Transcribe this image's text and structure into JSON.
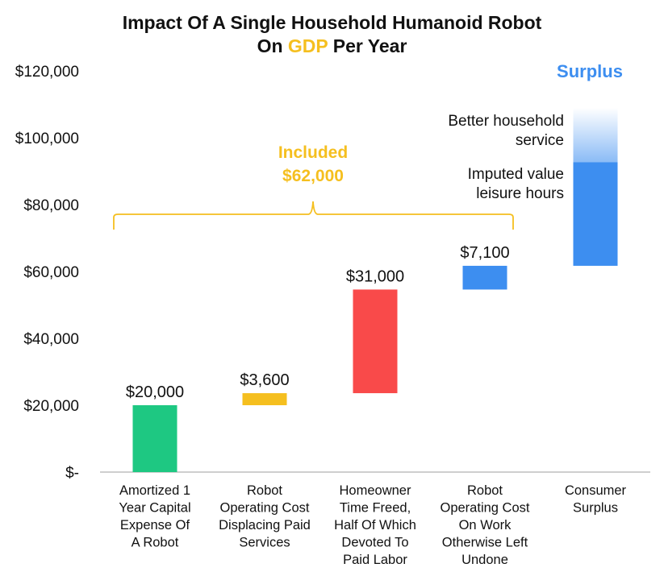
{
  "chart_data": {
    "type": "bar",
    "subtype": "waterfall",
    "title": {
      "prefix": "Impact Of A Single Household Humanoid Robot",
      "line2_prefix": "On ",
      "highlight": "GDP",
      "line2_suffix": " Per Year"
    },
    "y_ticks": [
      "$-",
      "$20,000",
      "$40,000",
      "$60,000",
      "$80,000",
      "$100,000",
      "$120,000"
    ],
    "y_tick_values": [
      0,
      20000,
      40000,
      60000,
      80000,
      100000,
      120000
    ],
    "ylim": [
      0,
      120000
    ],
    "grid": false,
    "bars": [
      {
        "category_lines": [
          "Amortized 1",
          "Year Capital",
          "Expense Of",
          "A Robot"
        ],
        "start": 0,
        "end": 20000,
        "label": "$20,000",
        "color": "#1ec882"
      },
      {
        "category_lines": [
          "Robot",
          "Operating Cost",
          "Displacing Paid",
          "Services"
        ],
        "start": 20000,
        "end": 23600,
        "label": "$3,600",
        "color": "#f5bf1f"
      },
      {
        "category_lines": [
          "Homeowner",
          "Time Freed,",
          "Half Of Which",
          "Devoted To",
          "Paid Labor"
        ],
        "start": 23600,
        "end": 54600,
        "label": "$31,000",
        "color": "#f94a4a"
      },
      {
        "category_lines": [
          "Robot",
          "Operating Cost",
          "On Work",
          "Otherwise Left",
          "Undone"
        ],
        "start": 54600,
        "end": 61700,
        "label": "$7,100",
        "color": "#3d8ef0"
      },
      {
        "category_lines": [
          "Consumer",
          "Surplus"
        ],
        "start": 61700,
        "end": 92700,
        "label": "",
        "color": "#3d8ef0",
        "gradient_top": 109000
      }
    ],
    "included": {
      "label": "Included",
      "value": "$62,000",
      "color": "#f5bf1f"
    },
    "surplus": {
      "label": "Surplus",
      "annotations": [
        [
          "Better household",
          "service"
        ],
        [
          "Imputed value",
          "leisure hours"
        ]
      ]
    }
  }
}
